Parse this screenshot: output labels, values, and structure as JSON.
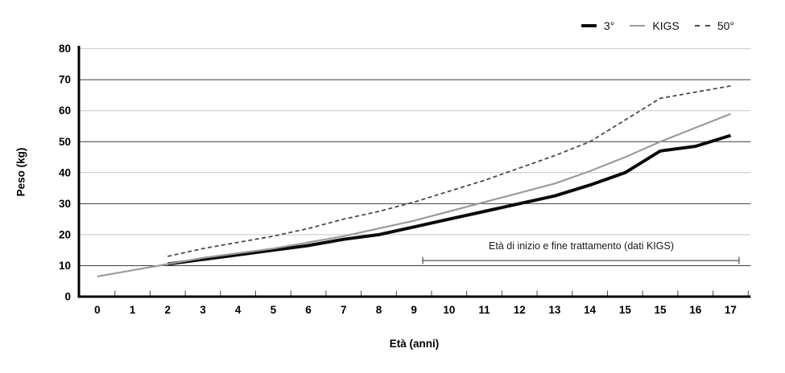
{
  "chart_data": {
    "type": "line",
    "title": "",
    "xlabel": "Età (anni)",
    "ylabel": "Peso (kg)",
    "x_tick_labels": [
      "0",
      "1",
      "2",
      "3",
      "4",
      "5",
      "6",
      "7",
      "8",
      "9",
      "10",
      "11",
      "12",
      "13",
      "14",
      "15",
      "15",
      "16",
      "17"
    ],
    "y_ticks": [
      0,
      10,
      20,
      30,
      40,
      50,
      60,
      70,
      80
    ],
    "ylim": [
      0,
      80
    ],
    "grid": "horizontal",
    "legend_position": "top-right",
    "series": [
      {
        "name": "3°",
        "style": "solid-thick",
        "color": "#0a0a0a",
        "values": [
          null,
          null,
          10.5,
          12,
          13.5,
          15,
          16.5,
          18.5,
          20,
          22.5,
          25,
          27.5,
          30,
          32.5,
          36,
          40,
          47,
          48.5,
          52
        ]
      },
      {
        "name": "KIGS",
        "style": "solid",
        "color": "#9b9b9b",
        "values": [
          6.5,
          8.5,
          10.5,
          12.5,
          14,
          15.5,
          17.5,
          19.5,
          22,
          24.5,
          27.5,
          30.5,
          33.5,
          36.5,
          40.5,
          45,
          50,
          54.5,
          59
        ]
      },
      {
        "name": "50°",
        "style": "dashed",
        "color": "#4a4a4a",
        "values": [
          null,
          null,
          13,
          15.5,
          17.5,
          19.5,
          22,
          25,
          27.5,
          30.5,
          34,
          37.5,
          41.5,
          45.5,
          50,
          57,
          64,
          66,
          68
        ]
      }
    ],
    "annotation": {
      "label": "Età di inizio e fine trattamento (dati KIGS)",
      "x_start_index": 9.75,
      "x_end_index": 18.74,
      "y_value": 11.65
    },
    "colors": {
      "axis": "#000000",
      "grid_light": "#c8c8c8",
      "grid_dark": "#3d3d3d",
      "tick": "#444444"
    }
  }
}
